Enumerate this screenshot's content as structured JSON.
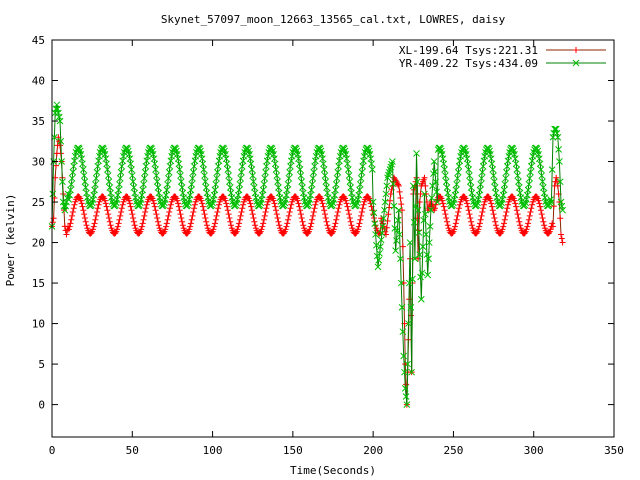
{
  "chart_data": {
    "type": "line",
    "title": "Skynet_57097_moon_12663_13565_cal.txt, LOWRES, daisy",
    "xlabel": "Time(Seconds)",
    "ylabel": "Power (kelvin)",
    "xlim": [
      0,
      350
    ],
    "ylim": [
      -4,
      45
    ],
    "xticks": [
      0,
      50,
      100,
      150,
      200,
      250,
      300,
      350
    ],
    "yticks": [
      0,
      5,
      10,
      15,
      20,
      25,
      30,
      35,
      40,
      45
    ],
    "grid": false,
    "legend_position": "top-right",
    "series": [
      {
        "name": "XL-199.64 Tsys:221.31",
        "color": "#ff0000",
        "line_color": "#8b2500",
        "marker": "plus",
        "baseline": 23.4,
        "amplitude": 2.3,
        "period": 15,
        "phase": 1.0,
        "start": {
          "t": [
            0,
            1,
            2,
            3,
            4,
            5,
            6,
            7,
            8,
            9,
            10
          ],
          "v": [
            22,
            23,
            28,
            31,
            33,
            32,
            30,
            26,
            22,
            21,
            22
          ]
        },
        "dropout": {
          "t": [
            205,
            208,
            211,
            213,
            216,
            218,
            219,
            220,
            221,
            222,
            223,
            224,
            225,
            226,
            227,
            228,
            229,
            230,
            232,
            234,
            236,
            238
          ],
          "v": [
            23,
            21,
            26,
            28,
            27,
            24,
            15,
            5,
            0,
            8,
            18,
            4,
            26,
            27,
            28,
            18,
            25,
            27,
            28,
            24,
            25,
            24
          ]
        },
        "end": {
          "t": [
            312,
            313,
            314,
            315,
            316,
            317,
            318
          ],
          "v": [
            22,
            27,
            28,
            27,
            25,
            21,
            20
          ]
        },
        "range": [
          0,
          318
        ]
      },
      {
        "name": "YR-409.22 Tsys:434.09",
        "color": "#00c000",
        "line_color": "#008000",
        "marker": "cross",
        "baseline": 28.1,
        "amplitude": 3.6,
        "period": 15,
        "phase": 1.0,
        "start": {
          "t": [
            0,
            1,
            2,
            3,
            4,
            5,
            6,
            7,
            8,
            9,
            10
          ],
          "v": [
            22,
            30,
            36,
            37,
            36,
            35,
            30,
            25,
            24,
            25,
            26
          ]
        },
        "dropout": {
          "t": [
            200,
            203,
            206,
            209,
            212,
            214,
            216,
            218,
            219,
            220,
            221,
            222,
            223,
            224,
            225,
            226,
            227,
            228,
            230,
            232,
            234,
            236,
            238,
            240
          ],
          "v": [
            25,
            17,
            22,
            28,
            30,
            19,
            24,
            12,
            6,
            2,
            0,
            10,
            20,
            4,
            27,
            18,
            31,
            24,
            13,
            26,
            16,
            24,
            30,
            25
          ]
        },
        "end": {
          "t": [
            311,
            312,
            313,
            314,
            315,
            316,
            317,
            318
          ],
          "v": [
            25,
            33,
            34,
            34,
            33,
            30,
            25,
            24
          ]
        },
        "range": [
          0,
          318
        ]
      }
    ]
  }
}
